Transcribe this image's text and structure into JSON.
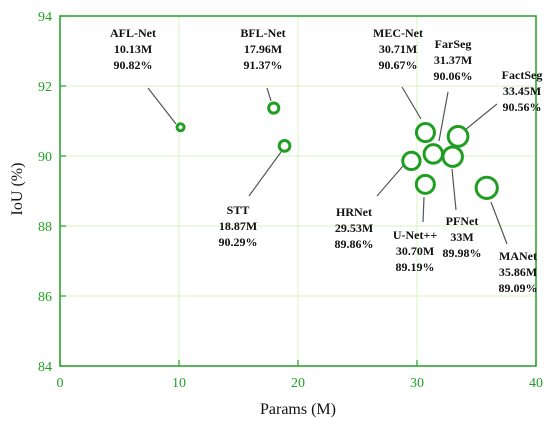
{
  "chart_data": {
    "type": "scatter",
    "xlabel": "Params (M)",
    "ylabel": "IoU (%)",
    "xlim": [
      0,
      40
    ],
    "ylim": [
      84,
      94
    ],
    "x_ticks": [
      0,
      10,
      20,
      30,
      40
    ],
    "y_ticks": [
      84,
      86,
      88,
      90,
      92,
      94
    ],
    "grid": true,
    "colors": {
      "marker": "#1f9f22",
      "grid": "#d9f0c2",
      "axis": "#22a126",
      "leader": "#555555"
    },
    "points": [
      {
        "name": "AFL-Net",
        "x": 10.13,
        "y": 90.82,
        "params_label": "10.13M",
        "iou_label": "90.82%"
      },
      {
        "name": "BFL-Net",
        "x": 17.96,
        "y": 91.37,
        "params_label": "17.96M",
        "iou_label": "91.37%"
      },
      {
        "name": "STT",
        "x": 18.87,
        "y": 90.29,
        "params_label": "18.87M",
        "iou_label": "90.29%"
      },
      {
        "name": "HRNet",
        "x": 29.53,
        "y": 89.86,
        "params_label": "29.53M",
        "iou_label": "89.86%"
      },
      {
        "name": "U-Net++",
        "x": 30.7,
        "y": 89.19,
        "params_label": "30.70M",
        "iou_label": "89.19%"
      },
      {
        "name": "MEC-Net",
        "x": 30.71,
        "y": 90.67,
        "params_label": "30.71M",
        "iou_label": "90.67%"
      },
      {
        "name": "FarSeg",
        "x": 31.37,
        "y": 90.06,
        "params_label": "31.37M",
        "iou_label": "90.06%"
      },
      {
        "name": "PFNet",
        "x": 33,
        "y": 89.98,
        "params_label": "33M",
        "iou_label": "89.98%"
      },
      {
        "name": "FactSeg",
        "x": 33.45,
        "y": 90.56,
        "params_label": "33.45M",
        "iou_label": "90.56%"
      },
      {
        "name": "MANet",
        "x": 35.86,
        "y": 89.09,
        "params_label": "35.86M",
        "iou_label": "89.09%"
      }
    ]
  }
}
